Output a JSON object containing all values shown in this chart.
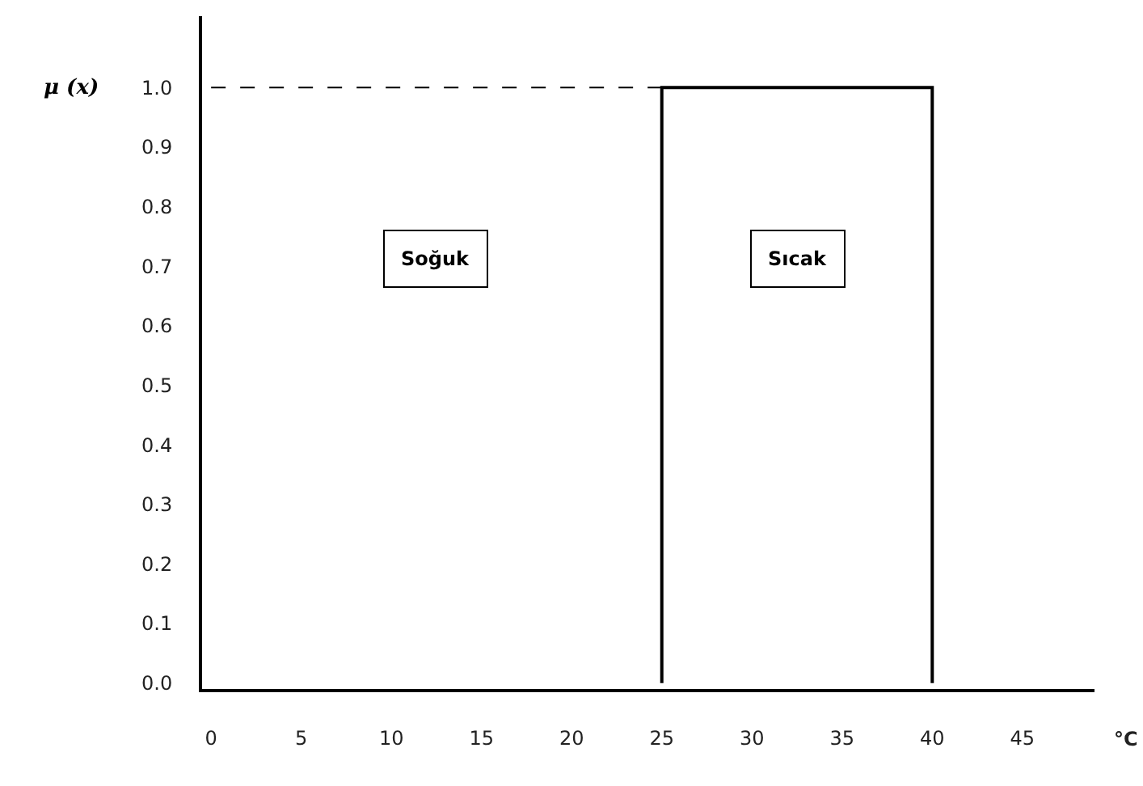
{
  "chart_data": {
    "type": "line",
    "xlabel": "°C",
    "ylabel": "μ (x)",
    "xlim": [
      -0.5,
      49
    ],
    "xticks": [
      0,
      5,
      10,
      15,
      20,
      25,
      30,
      35,
      40,
      45
    ],
    "ylim": [
      -0.01,
      1.12
    ],
    "yticks": [
      {
        "value": 0,
        "label": "0.0"
      },
      0.1,
      0.2,
      0.3,
      0.4,
      0.5,
      0.6,
      0.7,
      0.8,
      0.9,
      {
        "value": 1,
        "label": "1.0"
      }
    ],
    "legend": false,
    "marker": "none",
    "series": [
      {
        "name": "Soğuk",
        "color": "#000000",
        "x": [
          0,
          25
        ],
        "values": [
          1,
          1
        ],
        "line_style": "dashed"
      },
      {
        "name": "Sıcak",
        "color": "#000000",
        "x": [
          25,
          25,
          40,
          40
        ],
        "values": [
          0,
          1,
          1,
          0
        ],
        "line_style": "solid"
      }
    ]
  }
}
